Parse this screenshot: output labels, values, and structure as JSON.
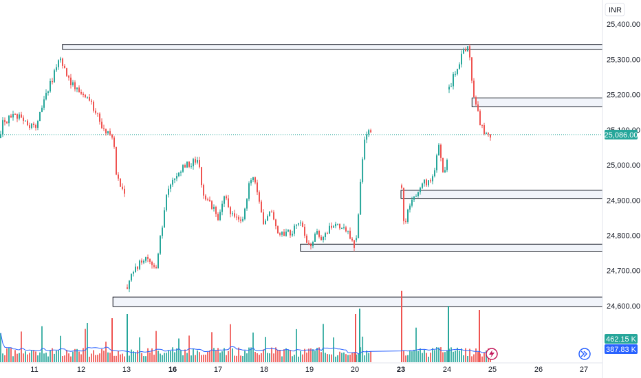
{
  "chart_data": {
    "type": "candlestick",
    "currency": "INR",
    "y_range": [
      24500,
      25460
    ],
    "y_ticks": [
      "25,400.00",
      "25,300.00",
      "25,200.00",
      "25,100.00",
      "25,000.00",
      "24,900.00",
      "24,800.00",
      "24,700.00",
      "24,600.00"
    ],
    "y_tick_values": [
      25400,
      25300,
      25200,
      25100,
      25000,
      24900,
      24800,
      24700,
      24600
    ],
    "x_ticks": [
      {
        "label": "11",
        "bold": false
      },
      {
        "label": "12",
        "bold": false
      },
      {
        "label": "13",
        "bold": false
      },
      {
        "label": "16",
        "bold": true
      },
      {
        "label": "17",
        "bold": false
      },
      {
        "label": "18",
        "bold": false
      },
      {
        "label": "19",
        "bold": false
      },
      {
        "label": "20",
        "bold": false
      },
      {
        "label": "23",
        "bold": true
      },
      {
        "label": "24",
        "bold": false
      },
      {
        "label": "25",
        "bold": false
      },
      {
        "label": "26",
        "bold": false
      },
      {
        "label": "27",
        "bold": false
      }
    ],
    "last_price": {
      "value": 25086,
      "label": "25,086.00"
    },
    "volume_labels": [
      {
        "label": "462.15 K",
        "color": "#26a69a"
      },
      {
        "label": "387.83 K",
        "color": "#2962ff"
      }
    ],
    "zones": [
      {
        "price_top": 25342,
        "price_bottom": 25328,
        "start_day": 11.6
      },
      {
        "price_top": 25190,
        "price_bottom": 25165,
        "start_day": 24.55
      },
      {
        "price_top": 24928,
        "price_bottom": 24905,
        "start_day": 23.0
      },
      {
        "price_top": 24775,
        "price_bottom": 24755,
        "start_day": 18.8
      },
      {
        "price_top": 24625,
        "price_bottom": 24598,
        "start_day": 12.7
      }
    ],
    "colors": {
      "up": "#26a69a",
      "down": "#ef5350",
      "volume_ma": "#2962ff",
      "last_price": "#26a69a"
    },
    "grid": false,
    "icons": [
      "lightning-icon",
      "scroll-right-icon"
    ]
  }
}
